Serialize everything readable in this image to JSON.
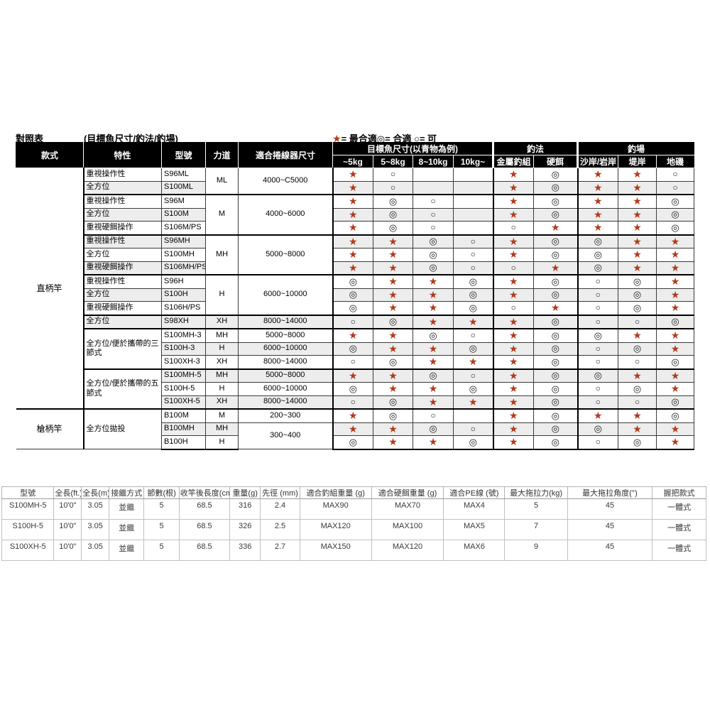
{
  "page": {
    "title": "對照表",
    "subtitle": "(目標魚尺寸/釣法/釣場)",
    "legend": {
      "best_symbol": "★",
      "best_text": "= 最合適",
      "good_symbol": "◎",
      "good_text": "= 合適",
      "ok_symbol": "○",
      "ok_text": "= 可"
    }
  },
  "colors": {
    "star": "#b23a1a",
    "header_bg": "#000000",
    "stripe": "#ededed"
  },
  "top_table": {
    "headers": {
      "main": [
        "款式",
        "特性",
        "型號",
        "力道",
        "適合捲線器尺寸"
      ],
      "groups": [
        "目標魚尺寸(以青物為例)",
        "釣法",
        "釣場"
      ],
      "sub": [
        "~5kg",
        "5~8kg",
        "8~10kg",
        "10kg~",
        "金屬釣組",
        "硬餌",
        "沙岸/岩岸",
        "堤岸",
        "地磯"
      ]
    },
    "rows": [
      {
        "model": "S96ML",
        "style": {
          "text": "直柄竿",
          "span": 18
        },
        "feature": {
          "text": "重視操作性",
          "span": 1
        },
        "power": {
          "text": "ML",
          "span": 2
        },
        "reel": {
          "text": "4000~C5000",
          "span": 2
        },
        "sym": [
          "★",
          "○",
          "",
          "",
          "★",
          "◎",
          "★",
          "★",
          "○"
        ]
      },
      {
        "model": "S100ML",
        "feature": {
          "text": "全方位",
          "span": 1
        },
        "sym": [
          "★",
          "○",
          "",
          "",
          "★",
          "◎",
          "★",
          "★",
          "○"
        ]
      },
      {
        "model": "S96M",
        "thick": true,
        "feature": {
          "text": "重視操作性",
          "span": 1
        },
        "power": {
          "text": "M",
          "span": 3
        },
        "reel": {
          "text": "4000~6000",
          "span": 3
        },
        "sym": [
          "★",
          "◎",
          "○",
          "",
          "★",
          "◎",
          "★",
          "★",
          "◎"
        ]
      },
      {
        "model": "S100M",
        "feature": {
          "text": "全方位",
          "span": 1
        },
        "sym": [
          "★",
          "◎",
          "○",
          "",
          "★",
          "◎",
          "★",
          "★",
          "◎"
        ]
      },
      {
        "model": "S106M/PS",
        "feature": {
          "text": "重視硬餌操作",
          "span": 1
        },
        "sym": [
          "★",
          "◎",
          "○",
          "",
          "○",
          "★",
          "★",
          "★",
          "◎"
        ]
      },
      {
        "model": "S96MH",
        "thick": true,
        "feature": {
          "text": "重視操作性",
          "span": 1
        },
        "power": {
          "text": "MH",
          "span": 3
        },
        "reel": {
          "text": "5000~8000",
          "span": 3
        },
        "sym": [
          "★",
          "★",
          "◎",
          "○",
          "★",
          "◎",
          "◎",
          "★",
          "★"
        ]
      },
      {
        "model": "S100MH",
        "feature": {
          "text": "全方位",
          "span": 1
        },
        "sym": [
          "★",
          "★",
          "◎",
          "○",
          "★",
          "◎",
          "◎",
          "★",
          "★"
        ]
      },
      {
        "model": "S106MH/PS",
        "feature": {
          "text": "重視硬餌操作",
          "span": 1
        },
        "sym": [
          "★",
          "★",
          "◎",
          "○",
          "○",
          "★",
          "◎",
          "★",
          "★"
        ]
      },
      {
        "model": "S96H",
        "thick": true,
        "feature": {
          "text": "重視操作性",
          "span": 1
        },
        "power": {
          "text": "H",
          "span": 3
        },
        "reel": {
          "text": "6000~10000",
          "span": 3
        },
        "sym": [
          "◎",
          "★",
          "★",
          "◎",
          "★",
          "◎",
          "○",
          "◎",
          "★"
        ]
      },
      {
        "model": "S100H",
        "feature": {
          "text": "全方位",
          "span": 1
        },
        "sym": [
          "◎",
          "★",
          "★",
          "◎",
          "★",
          "◎",
          "○",
          "◎",
          "★"
        ]
      },
      {
        "model": "S106H/PS",
        "feature": {
          "text": "重視硬餌操作",
          "span": 1
        },
        "sym": [
          "◎",
          "★",
          "★",
          "◎",
          "○",
          "★",
          "○",
          "◎",
          "★"
        ]
      },
      {
        "model": "S98XH",
        "thick": true,
        "feature": {
          "text": "全方位",
          "span": 1
        },
        "power": {
          "text": "XH",
          "span": 1
        },
        "reel": {
          "text": "8000~14000",
          "span": 1
        },
        "sym": [
          "○",
          "◎",
          "★",
          "★",
          "★",
          "◎",
          "○",
          "○",
          "◎"
        ]
      },
      {
        "model": "S100MH-3",
        "thick": true,
        "feature": {
          "text": "全方位/便於攜帶的三節式",
          "span": 3
        },
        "power": {
          "text": "MH",
          "span": 1
        },
        "reel": {
          "text": "5000~8000",
          "span": 1
        },
        "sym": [
          "★",
          "★",
          "◎",
          "○",
          "★",
          "◎",
          "◎",
          "★",
          "★"
        ]
      },
      {
        "model": "S100H-3",
        "power": {
          "text": "H",
          "span": 1
        },
        "reel": {
          "text": "6000~10000",
          "span": 1
        },
        "sym": [
          "◎",
          "★",
          "★",
          "◎",
          "★",
          "◎",
          "○",
          "◎",
          "★"
        ]
      },
      {
        "model": "S100XH-3",
        "power": {
          "text": "XH",
          "span": 1
        },
        "reel": {
          "text": "8000~14000",
          "span": 1
        },
        "sym": [
          "○",
          "◎",
          "★",
          "★",
          "★",
          "◎",
          "○",
          "○",
          "◎"
        ]
      },
      {
        "model": "S100MH-5",
        "thick": true,
        "feature": {
          "text": "全方位/便於攜帶的五節式",
          "span": 3
        },
        "power": {
          "text": "MH",
          "span": 1
        },
        "reel": {
          "text": "5000~8000",
          "span": 1
        },
        "sym": [
          "★",
          "★",
          "◎",
          "○",
          "★",
          "◎",
          "◎",
          "★",
          "★"
        ]
      },
      {
        "model": "S100H-5",
        "power": {
          "text": "H",
          "span": 1
        },
        "reel": {
          "text": "6000~10000",
          "span": 1
        },
        "sym": [
          "◎",
          "★",
          "★",
          "◎",
          "★",
          "◎",
          "○",
          "◎",
          "★"
        ]
      },
      {
        "model": "S100XH-5",
        "power": {
          "text": "XH",
          "span": 1
        },
        "reel": {
          "text": "8000~14000",
          "span": 1
        },
        "sym": [
          "○",
          "◎",
          "★",
          "★",
          "★",
          "◎",
          "○",
          "○",
          "◎"
        ]
      },
      {
        "model": "B100M",
        "thick": true,
        "style": {
          "text": "槍柄竿",
          "span": 3
        },
        "feature": {
          "text": "全方位拋投",
          "span": 3
        },
        "power": {
          "text": "M",
          "span": 1
        },
        "reel": {
          "text": "200~300",
          "span": 1
        },
        "sym": [
          "★",
          "◎",
          "○",
          "",
          "★",
          "◎",
          "★",
          "★",
          "◎"
        ]
      },
      {
        "model": "B100MH",
        "power": {
          "text": "MH",
          "span": 1
        },
        "reel": {
          "text": "300~400",
          "span": 2
        },
        "sym": [
          "★",
          "★",
          "◎",
          "○",
          "★",
          "◎",
          "◎",
          "★",
          "★"
        ]
      },
      {
        "model": "B100H",
        "power": {
          "text": "H",
          "span": 1
        },
        "sym": [
          "◎",
          "★",
          "★",
          "◎",
          "★",
          "◎",
          "○",
          "◎",
          "★"
        ]
      }
    ]
  },
  "bottom_table": {
    "headers": [
      "型號",
      "全長(ft.)",
      "全長(m)",
      "接繼方式",
      "節數(根)",
      "收竿後長度(cm)",
      "重量(g)",
      "先徑 (mm)",
      "適合釣組重量 (g)",
      "適合硬餌重量 (g)",
      "適合PE線 (號)",
      "最大拖拉力(kg)",
      "最大拖拉角度(°)",
      "握把款式"
    ],
    "rows": [
      [
        "S100MH-5",
        "10'0\"",
        "3.05",
        "並繼",
        "5",
        "68.5",
        "316",
        "2.4",
        "MAX90",
        "MAX70",
        "MAX4",
        "5",
        "45",
        "一體式"
      ],
      [
        "S100H-5",
        "10'0\"",
        "3.05",
        "並繼",
        "5",
        "68.5",
        "326",
        "2.5",
        "MAX120",
        "MAX100",
        "MAX5",
        "7",
        "45",
        "一體式"
      ],
      [
        "S100XH-5",
        "10'0\"",
        "3.05",
        "並繼",
        "5",
        "68.5",
        "336",
        "2.7",
        "MAX150",
        "MAX120",
        "MAX6",
        "9",
        "45",
        "一體式"
      ]
    ]
  }
}
